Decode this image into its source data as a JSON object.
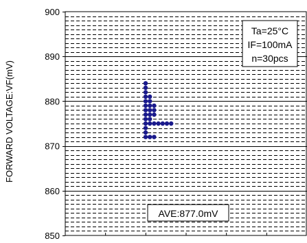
{
  "chart_data": {
    "type": "scatter",
    "ylabel": "FORWARD VOLTAGE:VF(mV)",
    "ylim": [
      850,
      900
    ],
    "yticks": [
      850,
      860,
      870,
      880,
      890,
      900
    ],
    "grid": true,
    "x_tick_labels_shown": false,
    "marker_color": "#1a1a8c",
    "conditions": [
      "Ta=25°C",
      "IF=100mA",
      "n=30pcs"
    ],
    "average_label": "AVE:877.0mV",
    "series": [
      {
        "points": [
          {
            "x": 1,
            "y": 884
          },
          {
            "x": 1,
            "y": 883
          },
          {
            "x": 1,
            "y": 882
          },
          {
            "x": 1,
            "y": 881
          },
          {
            "x": 1,
            "y": 880
          },
          {
            "x": 1,
            "y": 879
          },
          {
            "x": 1,
            "y": 878
          },
          {
            "x": 1,
            "y": 877
          },
          {
            "x": 1,
            "y": 876
          },
          {
            "x": 1,
            "y": 875
          },
          {
            "x": 1,
            "y": 874
          },
          {
            "x": 1,
            "y": 873
          },
          {
            "x": 1,
            "y": 872
          },
          {
            "x": 2,
            "y": 881
          },
          {
            "x": 2,
            "y": 880
          },
          {
            "x": 2,
            "y": 879
          },
          {
            "x": 2,
            "y": 878
          },
          {
            "x": 2,
            "y": 877
          },
          {
            "x": 2,
            "y": 876
          },
          {
            "x": 2,
            "y": 875
          },
          {
            "x": 2,
            "y": 872
          },
          {
            "x": 3,
            "y": 879
          },
          {
            "x": 3,
            "y": 878
          },
          {
            "x": 3,
            "y": 877
          },
          {
            "x": 3,
            "y": 875
          },
          {
            "x": 3,
            "y": 872
          },
          {
            "x": 4,
            "y": 875
          },
          {
            "x": 5,
            "y": 875
          },
          {
            "x": 6,
            "y": 875
          },
          {
            "x": 7,
            "y": 875
          }
        ]
      }
    ]
  }
}
